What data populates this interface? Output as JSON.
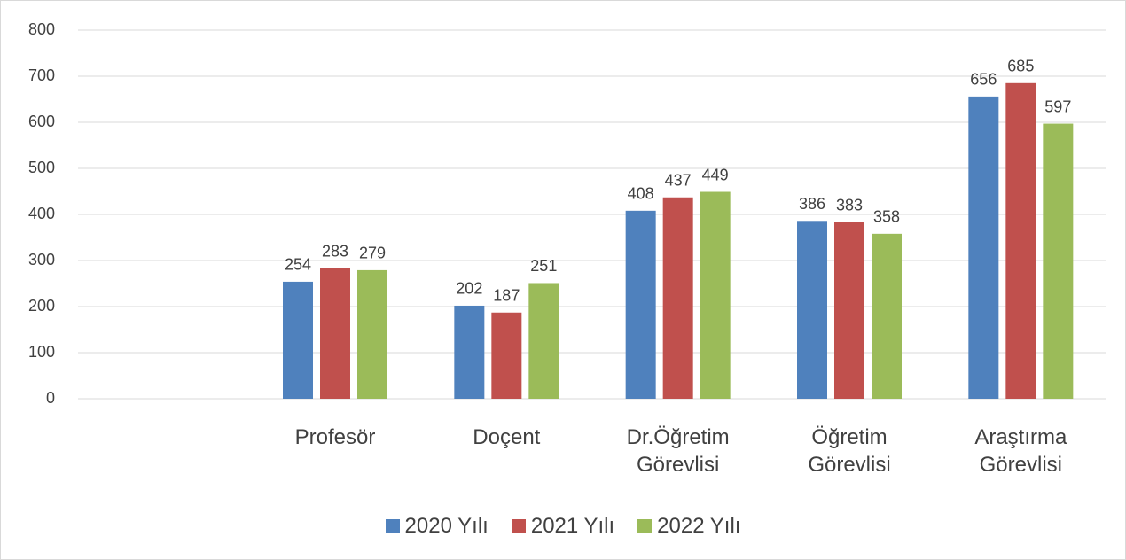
{
  "chart_data": {
    "type": "bar",
    "categories": [
      null,
      "Profesör",
      "Doçent",
      "Dr.Öğretim Görevlisi",
      "Öğretim Görevlisi",
      "Araştırma Görevlisi"
    ],
    "series": [
      {
        "name": "2020 Yılı",
        "color": "#4f81bd",
        "values": [
          null,
          254,
          202,
          408,
          386,
          656
        ]
      },
      {
        "name": "2021 Yılı",
        "color": "#c0504d",
        "values": [
          null,
          283,
          187,
          437,
          383,
          685
        ]
      },
      {
        "name": "2022 Yılı",
        "color": "#9bbb59",
        "values": [
          null,
          279,
          251,
          449,
          358,
          597
        ]
      }
    ],
    "ylim": [
      0,
      800
    ],
    "yticks": [
      0,
      100,
      200,
      300,
      400,
      500,
      600,
      700,
      800
    ],
    "grid": true,
    "legend": "bottom"
  }
}
